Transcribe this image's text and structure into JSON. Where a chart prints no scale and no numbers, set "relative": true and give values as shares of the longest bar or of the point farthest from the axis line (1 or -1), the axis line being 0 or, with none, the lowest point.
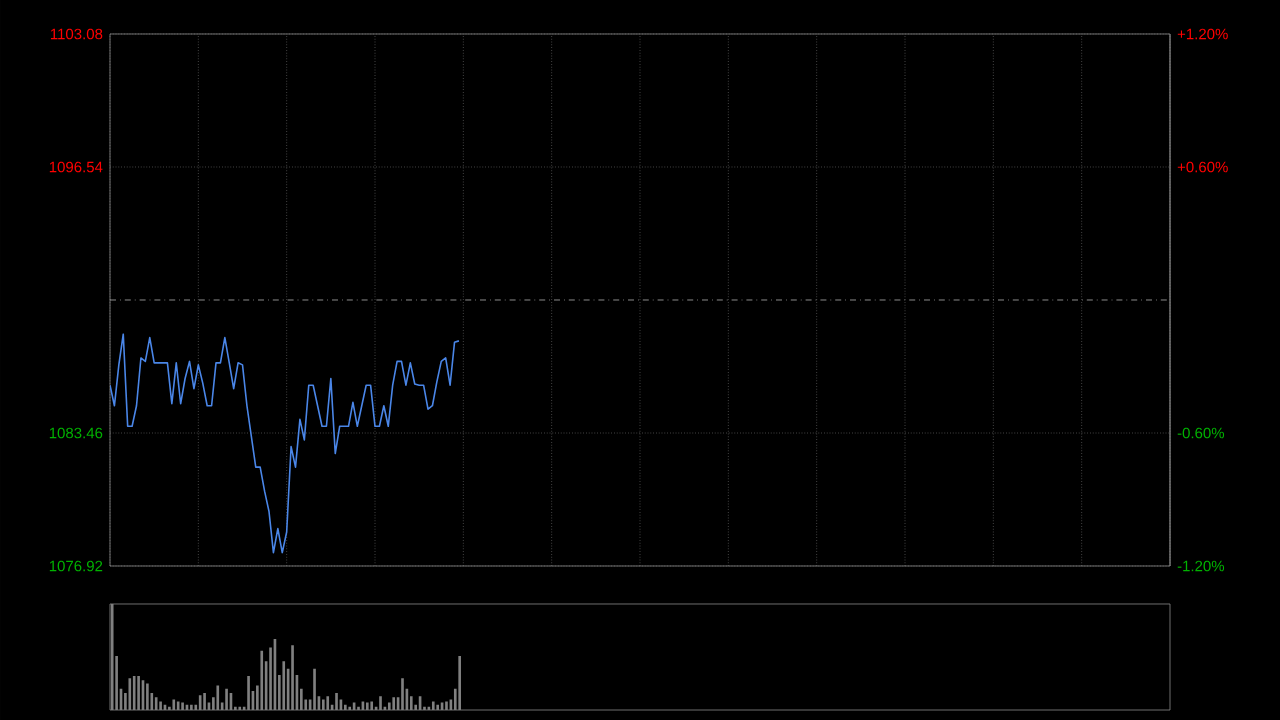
{
  "chart_data": [
    {
      "type": "line",
      "categories": [
        null,
        null,
        null,
        null,
        null,
        null,
        null,
        null,
        null,
        null,
        null,
        null,
        null,
        null,
        null,
        null,
        null,
        null,
        null,
        null,
        null,
        null,
        null,
        null,
        null,
        null,
        null,
        null,
        null,
        null,
        null,
        null,
        null,
        null,
        null,
        null,
        null,
        null,
        null,
        null,
        null,
        null,
        null,
        null,
        null,
        null,
        null,
        null,
        null,
        null,
        null,
        null,
        null,
        null,
        null,
        null,
        null,
        null,
        null,
        null,
        null,
        null,
        null,
        null,
        null,
        null,
        null,
        null,
        null,
        null,
        null,
        null,
        null,
        null,
        null,
        null,
        null,
        null,
        null,
        null,
        null,
        null,
        null,
        null,
        null,
        null,
        null,
        null,
        null,
        null,
        null,
        null,
        null,
        null,
        null,
        null,
        null,
        null,
        null,
        null,
        null,
        null,
        null,
        null,
        null,
        null,
        null,
        null,
        null,
        null,
        null,
        null,
        null,
        null,
        null,
        null,
        null,
        null,
        null,
        null,
        null,
        null,
        null,
        null,
        null,
        null,
        null,
        null,
        null,
        null,
        null,
        null,
        null,
        null,
        null,
        null,
        null,
        null,
        null,
        null,
        null,
        null,
        null,
        null,
        null,
        null,
        null,
        null,
        null,
        null,
        null,
        null,
        null,
        null,
        null,
        null,
        null,
        null,
        null,
        null,
        null,
        null,
        null,
        null,
        null,
        null,
        null,
        null,
        null,
        null,
        null,
        null,
        null,
        null,
        null,
        null,
        null,
        null,
        null,
        null,
        null,
        null,
        null,
        null,
        null,
        null,
        null,
        null,
        null,
        null,
        null,
        null,
        null,
        null,
        null,
        null,
        null,
        null,
        null,
        null,
        null,
        null,
        null,
        null,
        null,
        null,
        null,
        null,
        null,
        null,
        null,
        null,
        null,
        null,
        null,
        null,
        null,
        null,
        null,
        null,
        null,
        null,
        null,
        null,
        null,
        null,
        null,
        null,
        null,
        null,
        null,
        null,
        null,
        null,
        null,
        null,
        null,
        null,
        null,
        null,
        null
      ],
      "series": [
        {
          "color": "#4a86e8",
          "values": [
            1085.81,
            1084.8,
            1086.81,
            1088.32,
            1083.79,
            1083.79,
            1084.8,
            1087.15,
            1086.98,
            1088.15,
            1086.91,
            1086.91,
            1086.91,
            1086.91,
            1084.9,
            1086.91,
            1084.9,
            1086.14,
            1086.98,
            1085.64,
            1086.81,
            1085.91,
            1084.8,
            1084.8,
            1086.91,
            1086.91,
            1088.15,
            1086.91,
            1085.64,
            1086.91,
            1086.81,
            1084.8,
            1083.29,
            1081.78,
            1081.78,
            1080.6,
            1079.6,
            1077.58,
            1078.76,
            1077.58,
            1078.59,
            1082.79,
            1081.78,
            1084.13,
            1083.12,
            1085.81,
            1085.81,
            1084.8,
            1083.79,
            1083.79,
            1086.14,
            1082.45,
            1083.79,
            1083.79,
            1083.79,
            1084.97,
            1083.79,
            1084.8,
            1085.81,
            1085.81,
            1083.79,
            1083.79,
            1084.8,
            1083.79,
            1085.81,
            1086.98,
            1086.98,
            1085.81,
            1086.91,
            1085.87,
            1085.81,
            1085.81,
            1084.63,
            1084.8,
            1085.97,
            1086.98,
            1087.15,
            1085.81,
            1087.92,
            1087.99,
            null,
            null,
            null,
            null,
            null,
            null,
            null,
            null,
            null,
            null,
            null,
            null,
            null,
            null,
            null,
            null,
            null,
            null,
            null,
            null,
            null,
            null,
            null,
            null,
            null,
            null,
            null,
            null,
            null,
            null,
            null,
            null,
            null,
            null,
            null,
            null,
            null,
            null,
            null,
            null,
            null,
            null,
            null,
            null,
            null,
            null,
            null,
            null,
            null,
            null,
            null,
            null,
            null,
            null,
            null,
            null,
            null,
            null,
            null,
            null,
            null,
            null,
            null,
            null,
            null,
            null,
            null,
            null,
            null,
            null,
            null,
            null,
            null,
            null,
            null,
            null,
            null,
            null,
            null,
            null,
            null,
            null,
            null,
            null,
            null,
            null,
            null,
            null,
            null,
            null,
            null,
            null,
            null,
            null,
            null,
            null,
            null,
            null,
            null,
            null,
            null,
            null,
            null,
            null,
            null,
            null,
            null,
            null,
            null,
            null,
            null,
            null,
            null,
            null,
            null,
            null,
            null,
            null,
            null,
            null,
            null,
            null,
            null,
            null,
            null,
            null,
            null,
            null,
            null,
            null,
            null,
            null,
            null,
            null,
            null,
            null,
            null,
            null,
            null,
            null,
            null,
            null,
            null,
            null,
            null,
            null,
            null,
            null,
            null,
            null,
            null,
            null,
            null,
            null,
            null,
            null,
            null,
            null,
            null,
            null,
            null
          ]
        }
      ],
      "ylim": [
        1076.92,
        1103.08
      ],
      "yticks": [
        {
          "value": 1076.92,
          "label": "1076.92"
        },
        {
          "value": 1083.46,
          "label": "1083.46"
        },
        {
          "value": 1096.54,
          "label": "1096.54"
        },
        {
          "value": 1103.08,
          "label": "1103.08"
        }
      ],
      "y2lim": [
        -1.2,
        1.2
      ],
      "y2ticks": [
        {
          "value": -1.2,
          "label": "-1.20%"
        },
        {
          "value": -0.6,
          "label": "-0.60%"
        },
        {
          "value": 0.6,
          "label": "+0.60%"
        },
        {
          "value": 1.2,
          "label": "+1.20%"
        }
      ],
      "ref_lines": [
        {
          "axis": "y",
          "value": 1090,
          "color": "#b0b0b0",
          "line_style": "dashdot"
        }
      ],
      "grid": true
    },
    {
      "type": "bar",
      "relative": true,
      "color": "#808080",
      "categories": [
        null,
        null,
        null,
        null,
        null,
        null,
        null,
        null,
        null,
        null,
        null,
        null,
        null,
        null,
        null,
        null,
        null,
        null,
        null,
        null,
        null,
        null,
        null,
        null,
        null,
        null,
        null,
        null,
        null,
        null,
        null,
        null,
        null,
        null,
        null,
        null,
        null,
        null,
        null,
        null,
        null,
        null,
        null,
        null,
        null,
        null,
        null,
        null,
        null,
        null,
        null,
        null,
        null,
        null,
        null,
        null,
        null,
        null,
        null,
        null,
        null,
        null,
        null,
        null,
        null,
        null,
        null,
        null,
        null,
        null,
        null,
        null,
        null,
        null,
        null,
        null,
        null,
        null,
        null,
        null,
        null,
        null,
        null,
        null,
        null,
        null,
        null,
        null,
        null,
        null,
        null,
        null,
        null,
        null,
        null,
        null,
        null,
        null,
        null,
        null,
        null,
        null,
        null,
        null,
        null,
        null,
        null,
        null,
        null,
        null,
        null,
        null,
        null,
        null,
        null,
        null,
        null,
        null,
        null,
        null,
        null,
        null,
        null,
        null,
        null,
        null,
        null,
        null,
        null,
        null,
        null,
        null,
        null,
        null,
        null,
        null,
        null,
        null,
        null,
        null,
        null,
        null,
        null,
        null,
        null,
        null,
        null,
        null,
        null,
        null,
        null,
        null,
        null,
        null,
        null,
        null,
        null,
        null,
        null,
        null,
        null,
        null,
        null,
        null,
        null,
        null,
        null,
        null,
        null,
        null,
        null,
        null,
        null,
        null,
        null,
        null,
        null,
        null,
        null,
        null,
        null,
        null,
        null,
        null,
        null,
        null,
        null,
        null,
        null,
        null,
        null,
        null,
        null,
        null,
        null,
        null,
        null,
        null,
        null,
        null,
        null,
        null,
        null,
        null,
        null,
        null,
        null,
        null,
        null,
        null,
        null,
        null,
        null,
        null,
        null,
        null,
        null,
        null,
        null,
        null,
        null,
        null,
        null,
        null,
        null,
        null,
        null,
        null,
        null,
        null,
        null,
        null,
        null,
        null,
        null,
        null,
        null,
        null,
        null,
        null,
        null
      ],
      "values": [
        1.0,
        0.51,
        0.2,
        0.16,
        0.3,
        0.32,
        0.32,
        0.28,
        0.25,
        0.16,
        0.12,
        0.08,
        0.05,
        0.03,
        0.1,
        0.08,
        0.07,
        0.05,
        0.05,
        0.05,
        0.14,
        0.16,
        0.07,
        0.12,
        0.23,
        0.07,
        0.2,
        0.16,
        0.03,
        0.03,
        0.03,
        0.32,
        0.18,
        0.23,
        0.56,
        0.46,
        0.59,
        0.67,
        0.33,
        0.46,
        0.39,
        0.61,
        0.33,
        0.2,
        0.1,
        0.1,
        0.39,
        0.13,
        0.1,
        0.13,
        0.05,
        0.16,
        0.1,
        0.05,
        0.03,
        0.07,
        0.03,
        0.08,
        0.07,
        0.08,
        0.03,
        0.13,
        0.03,
        0.07,
        0.12,
        0.12,
        0.3,
        0.2,
        0.13,
        0.05,
        0.13,
        0.03,
        0.03,
        0.08,
        0.05,
        0.07,
        0.08,
        0.1,
        0.2,
        0.51,
        null,
        null,
        null,
        null,
        null,
        null,
        null,
        null,
        null,
        null,
        null,
        null,
        null,
        null,
        null,
        null,
        null,
        null,
        null,
        null,
        null,
        null,
        null,
        null,
        null,
        null,
        null,
        null,
        null,
        null,
        null,
        null,
        null,
        null,
        null,
        null,
        null,
        null,
        null,
        null,
        null,
        null,
        null,
        null,
        null,
        null,
        null,
        null,
        null,
        null,
        null,
        null,
        null,
        null,
        null,
        null,
        null,
        null,
        null,
        null,
        null,
        null,
        null,
        null,
        null,
        null,
        null,
        null,
        null,
        null,
        null,
        null,
        null,
        null,
        null,
        null,
        null,
        null,
        null,
        null,
        null,
        null,
        null,
        null,
        null,
        null,
        null,
        null,
        null,
        null,
        null,
        null,
        null,
        null,
        null,
        null,
        null,
        null,
        null,
        null,
        null,
        null,
        null,
        null,
        null,
        null,
        null,
        null,
        null,
        null,
        null,
        null,
        null,
        null,
        null,
        null,
        null,
        null,
        null,
        null,
        null,
        null,
        null,
        null,
        null,
        null,
        null,
        null,
        null,
        null,
        null,
        null,
        null,
        null,
        null,
        null,
        null,
        null,
        null,
        null,
        null,
        null,
        null,
        null,
        null,
        null,
        null,
        null,
        null,
        null,
        null,
        null,
        null,
        null,
        null,
        null,
        null,
        null,
        null,
        null,
        null
      ]
    }
  ]
}
